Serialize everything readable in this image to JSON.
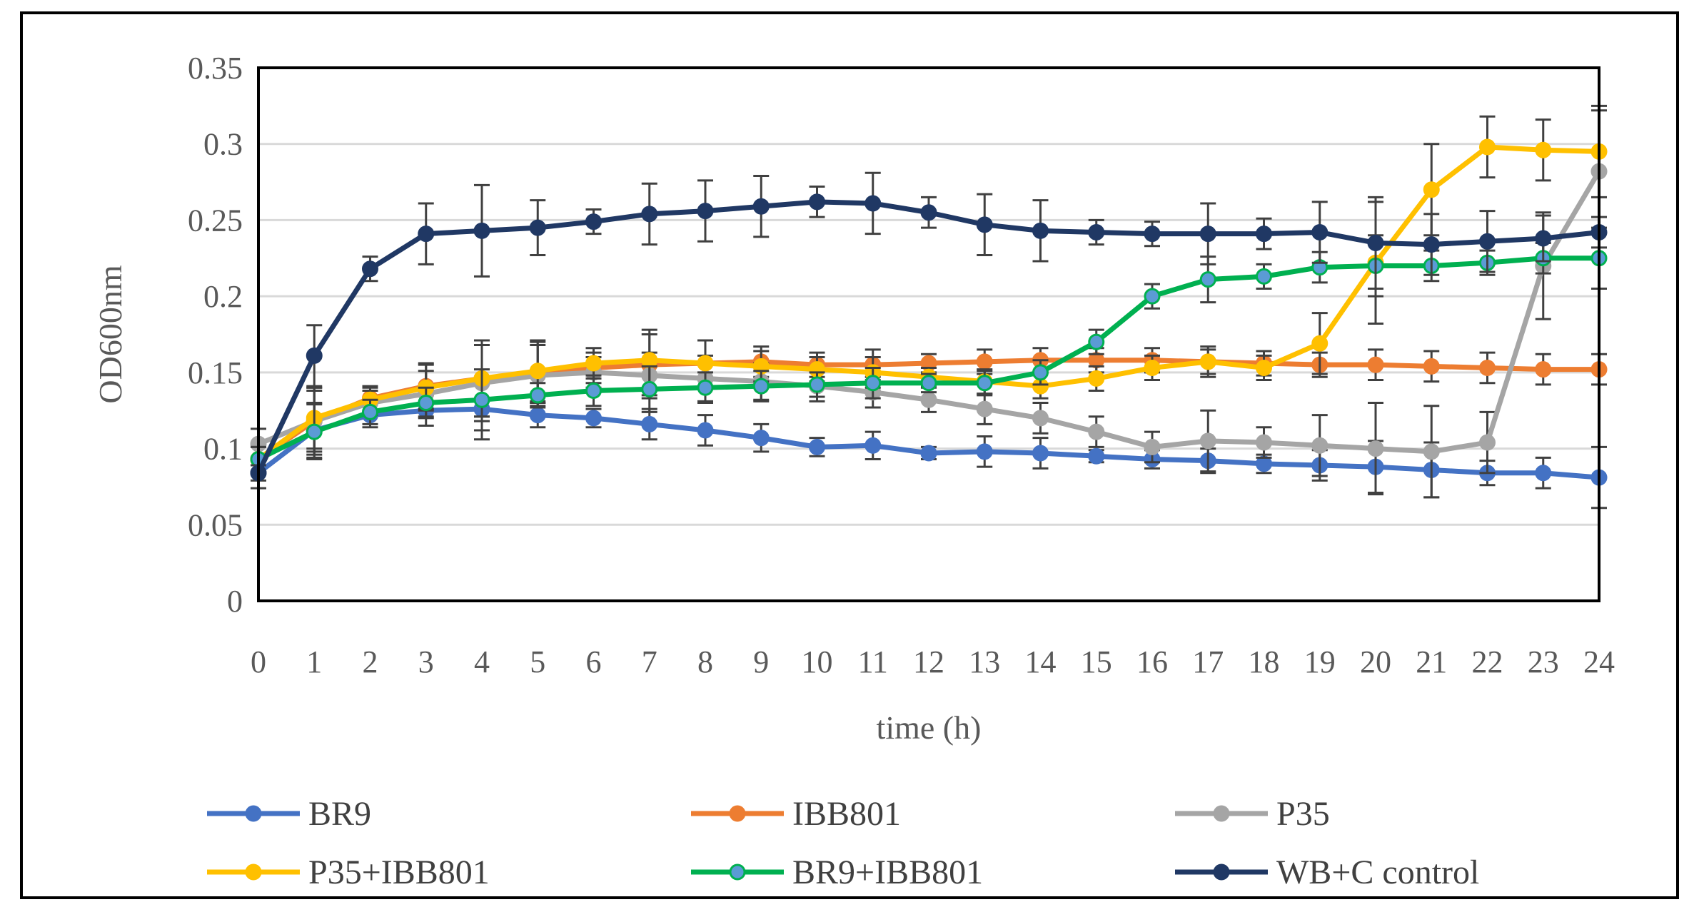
{
  "chart_data": {
    "type": "line",
    "title": "",
    "xlabel": "time (h)",
    "ylabel": "OD600nm",
    "x": [
      0,
      1,
      2,
      3,
      4,
      5,
      6,
      7,
      8,
      9,
      10,
      11,
      12,
      13,
      14,
      15,
      16,
      17,
      18,
      19,
      20,
      21,
      22,
      23,
      24
    ],
    "x_tick_labels": [
      "0",
      "1",
      "2",
      "3",
      "4",
      "5",
      "6",
      "7",
      "8",
      "9",
      "10",
      "11",
      "12",
      "13",
      "14",
      "15",
      "16",
      "17",
      "18",
      "19",
      "20",
      "21",
      "22",
      "23",
      "24"
    ],
    "ylim": [
      0,
      0.35
    ],
    "y_ticks": [
      0,
      0.05,
      0.1,
      0.15,
      0.2,
      0.25,
      0.3,
      0.35
    ],
    "y_tick_labels": [
      "0",
      "0.05",
      "0.1",
      "0.15",
      "0.2",
      "0.25",
      "0.3",
      "0.35"
    ],
    "grid": "horizontal",
    "legend_position": "bottom",
    "series": [
      {
        "name": "BR9",
        "color": "#4472C4",
        "marker_fill": "#4472C4",
        "values": [
          0.084,
          0.112,
          0.122,
          0.125,
          0.126,
          0.122,
          0.12,
          0.116,
          0.112,
          0.107,
          0.101,
          0.102,
          0.097,
          0.098,
          0.097,
          0.095,
          0.093,
          0.092,
          0.09,
          0.089,
          0.088,
          0.086,
          0.084,
          0.084,
          0.081
        ],
        "errors": [
          0.01,
          0.018,
          0.008,
          0.01,
          0.02,
          0.008,
          0.006,
          0.01,
          0.01,
          0.009,
          0.006,
          0.009,
          0.004,
          0.01,
          0.01,
          0.004,
          0.006,
          0.008,
          0.006,
          0.01,
          0.017,
          0.018,
          0.008,
          0.01,
          0.02
        ]
      },
      {
        "name": "IBB801",
        "color": "#ED7D31",
        "marker_fill": "#ED7D31",
        "values": [
          0.093,
          0.118,
          0.133,
          0.141,
          0.146,
          0.15,
          0.153,
          0.155,
          0.156,
          0.157,
          0.155,
          0.155,
          0.156,
          0.157,
          0.158,
          0.158,
          0.158,
          0.157,
          0.156,
          0.155,
          0.155,
          0.154,
          0.153,
          0.152,
          0.152
        ],
        "errors": [
          0.008,
          0.022,
          0.008,
          0.015,
          0.025,
          0.02,
          0.01,
          0.02,
          0.015,
          0.01,
          0.008,
          0.01,
          0.006,
          0.008,
          0.008,
          0.008,
          0.008,
          0.008,
          0.008,
          0.008,
          0.01,
          0.01,
          0.01,
          0.01,
          0.01
        ]
      },
      {
        "name": "P35",
        "color": "#A5A5A5",
        "marker_fill": "#A5A5A5",
        "values": [
          0.103,
          0.118,
          0.13,
          0.136,
          0.143,
          0.148,
          0.15,
          0.148,
          0.146,
          0.144,
          0.141,
          0.137,
          0.132,
          0.126,
          0.12,
          0.111,
          0.101,
          0.105,
          0.104,
          0.102,
          0.1,
          0.098,
          0.104,
          0.22,
          0.282
        ],
        "errors": [
          0.01,
          0.02,
          0.008,
          0.015,
          0.025,
          0.02,
          0.01,
          0.015,
          0.015,
          0.012,
          0.01,
          0.01,
          0.008,
          0.01,
          0.01,
          0.01,
          0.01,
          0.02,
          0.01,
          0.02,
          0.03,
          0.03,
          0.02,
          0.035,
          0.04
        ]
      },
      {
        "name": "P35+IBB801",
        "color": "#FFC000",
        "marker_fill": "#FFC000",
        "values": [
          0.093,
          0.12,
          0.132,
          0.14,
          0.146,
          0.151,
          0.156,
          0.158,
          0.156,
          0.154,
          0.152,
          0.15,
          0.147,
          0.144,
          0.141,
          0.146,
          0.153,
          0.157,
          0.153,
          0.169,
          0.222,
          0.27,
          0.298,
          0.296,
          0.295
        ],
        "errors": [
          0.008,
          0.02,
          0.008,
          0.015,
          0.025,
          0.02,
          0.01,
          0.02,
          0.015,
          0.01,
          0.008,
          0.01,
          0.006,
          0.008,
          0.008,
          0.008,
          0.008,
          0.01,
          0.008,
          0.02,
          0.04,
          0.03,
          0.02,
          0.02,
          0.03
        ]
      },
      {
        "name": "BR9+IBB801",
        "color": "#00B050",
        "marker_fill": "#5B9BD5",
        "values": [
          0.093,
          0.111,
          0.124,
          0.13,
          0.132,
          0.135,
          0.138,
          0.139,
          0.14,
          0.141,
          0.142,
          0.143,
          0.143,
          0.143,
          0.15,
          0.17,
          0.2,
          0.211,
          0.213,
          0.219,
          0.22,
          0.22,
          0.222,
          0.225,
          0.225
        ],
        "errors": [
          0.008,
          0.018,
          0.008,
          0.01,
          0.02,
          0.008,
          0.01,
          0.015,
          0.01,
          0.01,
          0.008,
          0.01,
          0.006,
          0.008,
          0.008,
          0.008,
          0.008,
          0.015,
          0.008,
          0.01,
          0.02,
          0.01,
          0.008,
          0.01,
          0.02
        ]
      },
      {
        "name": "WB+C control",
        "color": "#203864",
        "marker_fill": "#203864",
        "values": [
          0.084,
          0.161,
          0.218,
          0.241,
          0.243,
          0.245,
          0.249,
          0.254,
          0.256,
          0.259,
          0.262,
          0.261,
          0.255,
          0.247,
          0.243,
          0.242,
          0.241,
          0.241,
          0.241,
          0.242,
          0.235,
          0.234,
          0.236,
          0.238,
          0.242
        ],
        "errors": [
          0.005,
          0.02,
          0.008,
          0.02,
          0.03,
          0.018,
          0.008,
          0.02,
          0.02,
          0.02,
          0.01,
          0.02,
          0.01,
          0.02,
          0.02,
          0.008,
          0.008,
          0.02,
          0.01,
          0.02,
          0.03,
          0.02,
          0.02,
          0.015,
          0.01
        ]
      }
    ]
  }
}
